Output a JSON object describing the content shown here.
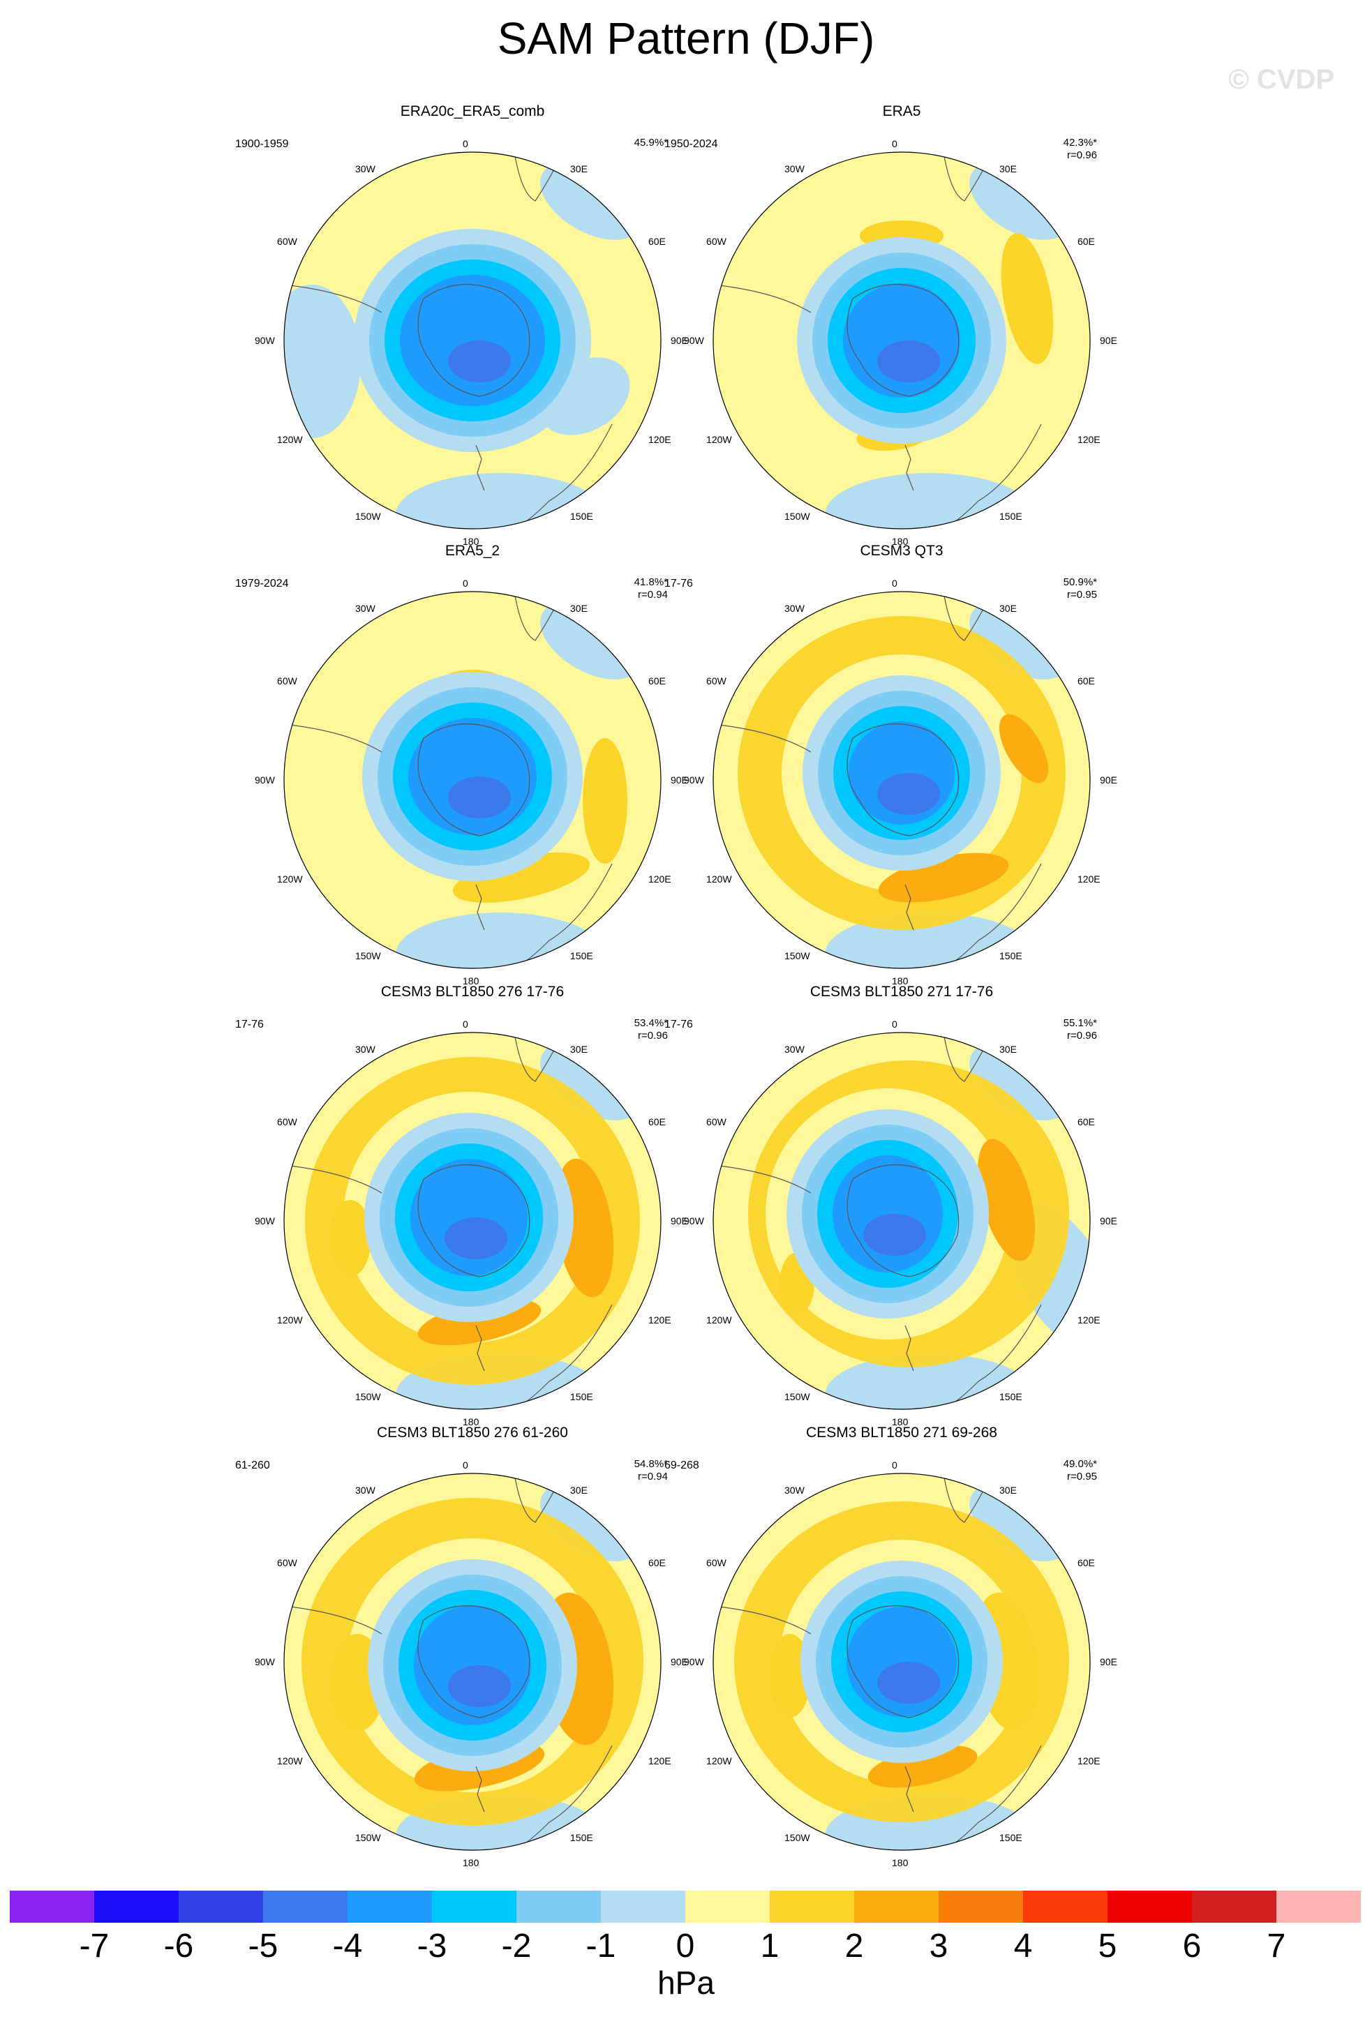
{
  "title": "SAM Pattern (DJF)",
  "watermark": "© CVDP",
  "lon_labels": {
    "top": "0",
    "bottom": "180",
    "left": "90W",
    "right": "90E",
    "tl1": "30W",
    "tl2": "60W",
    "tr1": "30E",
    "tr2": "60E",
    "bl1": "120W",
    "bl2": "150W",
    "br1": "120E",
    "br2": "150E"
  },
  "panels": [
    {
      "title": "ERA20c_ERA5_comb",
      "period": "1900-1959",
      "pct": "45.9%*",
      "r": ""
    },
    {
      "title": "ERA5",
      "period": "1950-2024",
      "pct": "42.3%*",
      "r": "r=0.96"
    },
    {
      "title": "ERA5_2",
      "period": "1979-2024",
      "pct": "41.8%*",
      "r": "r=0.94"
    },
    {
      "title": "CESM3 QT3",
      "period": "17-76",
      "pct": "50.9%*",
      "r": "r=0.95"
    },
    {
      "title": "CESM3 BLT1850 276 17-76",
      "period": "17-76",
      "pct": "53.4%*",
      "r": "r=0.96"
    },
    {
      "title": "CESM3 BLT1850 271 17-76",
      "period": "17-76",
      "pct": "55.1%*",
      "r": "r=0.96"
    },
    {
      "title": "CESM3 BLT1850 276 61-260",
      "period": "61-260",
      "pct": "54.8%*",
      "r": "r=0.94"
    },
    {
      "title": "CESM3 BLT1850 271 69-268",
      "period": "69-268",
      "pct": "49.0%*",
      "r": "r=0.95"
    }
  ],
  "colorbar": {
    "colors": [
      "#8b22ee",
      "#1a0dfa",
      "#2f42e8",
      "#3b78ea",
      "#1f9bff",
      "#00c8ff",
      "#7fcdf5",
      "#b4ddf2",
      "#fff89a",
      "#fbd42a",
      "#fbad0f",
      "#fa7e0c",
      "#fa3b08",
      "#eb0000",
      "#d21f1f",
      "#ffb4b4"
    ],
    "ticks": [
      "-7",
      "-6",
      "-5",
      "-4",
      "-3",
      "-2",
      "-1",
      "0",
      "1",
      "2",
      "3",
      "4",
      "5",
      "6",
      "7"
    ],
    "units": "hPa"
  }
}
